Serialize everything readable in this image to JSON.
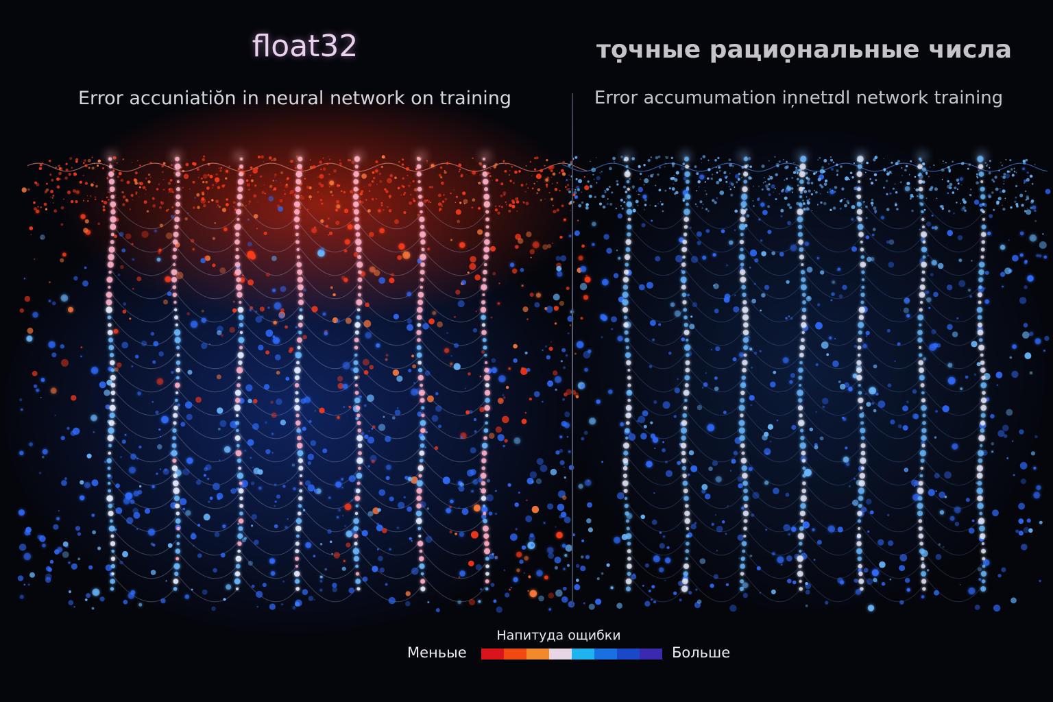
{
  "left_panel": {
    "title": "float32",
    "subtitle": "Error accuniatiŏn in neural network on training",
    "scheme": "error-heavy"
  },
  "right_panel": {
    "title": "тọчные рациọнальные числа",
    "subtitle": "Error accumumation in̦netɪdl network training",
    "scheme": "low-error"
  },
  "legend": {
    "title": "Напитуда ощибки",
    "low_label": "Меньые",
    "high_label": "Больше",
    "colors": [
      "#d9141a",
      "#f04a12",
      "#f08a2a",
      "#e8d6e4",
      "#20b4ee",
      "#1a70e0",
      "#1a48c8",
      "#3a2ab0"
    ]
  },
  "palette": {
    "red": "#ff3a1a",
    "orange": "#ff7a3a",
    "pink": "#ffb0c8",
    "blue": "#2f6bff",
    "light_blue": "#6ab8ff",
    "white": "#e8eeff"
  }
}
